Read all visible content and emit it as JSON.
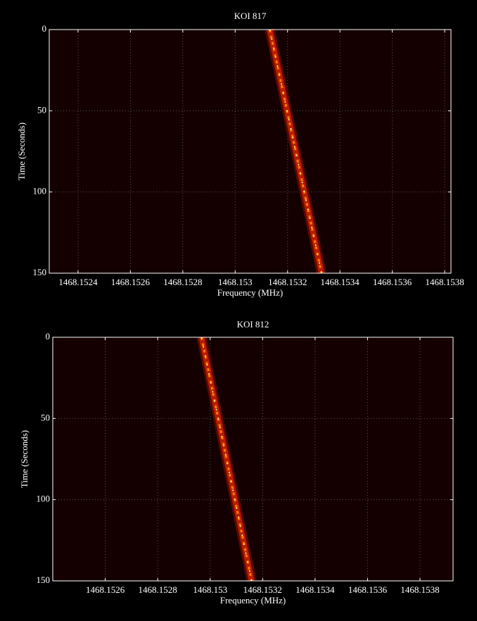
{
  "chart_data": [
    {
      "type": "waterfall",
      "title": "KOI 817",
      "x_label": "Frequency (MHz)",
      "y_label": "Time (Seconds)",
      "x": [
        1468.153132,
        1468.15333
      ],
      "values": [
        0,
        150
      ],
      "xlim": [
        1468.15229,
        1468.153824
      ],
      "xticks": [
        1468.1524,
        1468.1526,
        1468.1528,
        1468.153,
        1468.1532,
        1468.1534,
        1468.1536,
        1468.1538
      ],
      "ylim": [
        0,
        150
      ],
      "yticks": [
        0,
        50,
        100,
        150
      ],
      "y_inverted": true,
      "grid": true,
      "colormap": "hot"
    },
    {
      "type": "waterfall",
      "title": "KOI 812",
      "x_label": "Frequency (MHz)",
      "y_label": "Time (Seconds)",
      "x": [
        1468.152967,
        1468.153158
      ],
      "values": [
        0,
        150
      ],
      "xlim": [
        1468.1524,
        1468.153926
      ],
      "xticks": [
        1468.1526,
        1468.1528,
        1468.153,
        1468.1532,
        1468.1534,
        1468.1536,
        1468.1538
      ],
      "ylim": [
        0,
        150
      ],
      "yticks": [
        0,
        50,
        100,
        150
      ],
      "y_inverted": true,
      "grid": true,
      "colormap": "hot"
    }
  ]
}
